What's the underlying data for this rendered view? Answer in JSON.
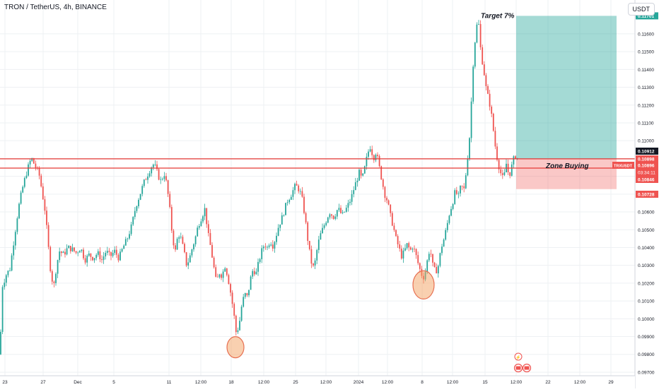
{
  "header": {
    "title": "TRON / TetherUS, 4h, BINANCE",
    "currency_button": "USDT"
  },
  "chart_data": {
    "type": "candlestick",
    "symbol": "TRXUSDT",
    "ylim": [
      0.0968,
      0.1179
    ],
    "y_ticks": [
      "0.09700",
      "0.09800",
      "0.09900",
      "0.10000",
      "0.10100",
      "0.10200",
      "0.10300",
      "0.10400",
      "0.10500",
      "0.10600",
      "0.10700",
      "0.10800",
      "0.10900",
      "0.11000",
      "0.11100",
      "0.11200",
      "0.11300",
      "0.11400",
      "0.11500",
      "0.11600"
    ],
    "x_ticks": [
      "23",
      "27",
      "Dec",
      "5",
      "11",
      "12:00",
      "18",
      "12:00",
      "25",
      "12:00",
      "2024",
      "12:00",
      "8",
      "12:00",
      "15",
      "12:00",
      "22",
      "12:00",
      "29"
    ],
    "price_tags": [
      {
        "value": "0.11701",
        "color": "#26a69a"
      },
      {
        "value": "0.10912",
        "color": "#131722"
      },
      {
        "value": "0.10898",
        "color": "#ef5350"
      },
      {
        "value": "0.10896",
        "color": "#ef5350"
      },
      {
        "value": "0.10846",
        "color": "#ef5350"
      },
      {
        "value": "0.10728",
        "color": "#ef5350"
      }
    ],
    "current_price": {
      "label": "TRXUSDT",
      "value": "0.10896",
      "countdown": "03:34:11"
    },
    "support_lines": [
      0.10898,
      0.10846
    ],
    "position": {
      "entry": 0.10896,
      "target": 0.11701,
      "stop": 0.10728
    },
    "annotations": {
      "target": "Target 7%",
      "zone": "Zone Buying"
    },
    "highlight_lows": [
      0.0984,
      0.1019
    ],
    "price_path": [
      [
        0,
        0.098
      ],
      [
        3,
        0.1018
      ],
      [
        9,
        0.1025
      ],
      [
        14,
        0.1028
      ],
      [
        20,
        0.1045
      ],
      [
        26,
        0.1062
      ],
      [
        31,
        0.1072
      ],
      [
        36,
        0.108
      ],
      [
        42,
        0.1088
      ],
      [
        46,
        0.109
      ],
      [
        48,
        0.1087
      ],
      [
        52,
        0.1084
      ],
      [
        56,
        0.108
      ],
      [
        60,
        0.107
      ],
      [
        64,
        0.106
      ],
      [
        68,
        0.1042
      ],
      [
        72,
        0.1025
      ],
      [
        76,
        0.1018
      ],
      [
        80,
        0.103
      ],
      [
        84,
        0.1038
      ],
      [
        90,
        0.1036
      ],
      [
        96,
        0.104
      ],
      [
        102,
        0.1039
      ],
      [
        108,
        0.1037
      ],
      [
        114,
        0.104
      ],
      [
        120,
        0.1033
      ],
      [
        126,
        0.1036
      ],
      [
        132,
        0.1034
      ],
      [
        138,
        0.1037
      ],
      [
        144,
        0.1033
      ],
      [
        150,
        0.1038
      ],
      [
        156,
        0.1035
      ],
      [
        162,
        0.1038
      ],
      [
        168,
        0.1034
      ],
      [
        174,
        0.104
      ],
      [
        180,
        0.1045
      ],
      [
        186,
        0.1052
      ],
      [
        192,
        0.1063
      ],
      [
        198,
        0.107
      ],
      [
        204,
        0.1077
      ],
      [
        210,
        0.1082
      ],
      [
        216,
        0.1087
      ],
      [
        220,
        0.1085
      ],
      [
        224,
        0.108
      ],
      [
        228,
        0.1077
      ],
      [
        232,
        0.1082
      ],
      [
        236,
        0.1075
      ],
      [
        240,
        0.1062
      ],
      [
        244,
        0.1045
      ],
      [
        248,
        0.1038
      ],
      [
        252,
        0.1048
      ],
      [
        256,
        0.1045
      ],
      [
        260,
        0.1038
      ],
      [
        264,
        0.103
      ],
      [
        268,
        0.1034
      ],
      [
        272,
        0.104
      ],
      [
        276,
        0.1045
      ],
      [
        280,
        0.1052
      ],
      [
        286,
        0.1058
      ],
      [
        290,
        0.1062
      ],
      [
        294,
        0.1048
      ],
      [
        298,
        0.104
      ],
      [
        302,
        0.103
      ],
      [
        306,
        0.102
      ],
      [
        310,
        0.1026
      ],
      [
        314,
        0.1024
      ],
      [
        318,
        0.103
      ],
      [
        322,
        0.1024
      ],
      [
        326,
        0.1015
      ],
      [
        330,
        0.1005
      ],
      [
        334,
        0.0992
      ],
      [
        338,
        0.0996
      ],
      [
        342,
        0.1008
      ],
      [
        346,
        0.1014
      ],
      [
        350,
        0.1012
      ],
      [
        354,
        0.1022
      ],
      [
        358,
        0.1028
      ],
      [
        362,
        0.1025
      ],
      [
        366,
        0.1032
      ],
      [
        370,
        0.1038
      ],
      [
        374,
        0.1042
      ],
      [
        378,
        0.104
      ],
      [
        382,
        0.1044
      ],
      [
        386,
        0.1041
      ],
      [
        390,
        0.1046
      ],
      [
        394,
        0.1052
      ],
      [
        400,
        0.1058
      ],
      [
        406,
        0.1066
      ],
      [
        412,
        0.107
      ],
      [
        418,
        0.1075
      ],
      [
        424,
        0.1072
      ],
      [
        428,
        0.1066
      ],
      [
        432,
        0.1055
      ],
      [
        436,
        0.1042
      ],
      [
        440,
        0.1032
      ],
      [
        444,
        0.1028
      ],
      [
        448,
        0.1038
      ],
      [
        452,
        0.1046
      ],
      [
        456,
        0.105
      ],
      [
        460,
        0.1054
      ],
      [
        466,
        0.106
      ],
      [
        472,
        0.1057
      ],
      [
        478,
        0.1062
      ],
      [
        484,
        0.1058
      ],
      [
        490,
        0.1062
      ],
      [
        496,
        0.1067
      ],
      [
        502,
        0.1075
      ],
      [
        508,
        0.1082
      ],
      [
        512,
        0.1078
      ],
      [
        516,
        0.1085
      ],
      [
        520,
        0.1093
      ],
      [
        524,
        0.1097
      ],
      [
        528,
        0.109
      ],
      [
        532,
        0.1094
      ],
      [
        536,
        0.1086
      ],
      [
        540,
        0.1078
      ],
      [
        544,
        0.107
      ],
      [
        548,
        0.1066
      ],
      [
        552,
        0.1058
      ],
      [
        556,
        0.1052
      ],
      [
        560,
        0.1045
      ],
      [
        564,
        0.104
      ],
      [
        568,
        0.1035
      ],
      [
        572,
        0.1038
      ],
      [
        576,
        0.1042
      ],
      [
        580,
        0.1038
      ],
      [
        584,
        0.1041
      ],
      [
        588,
        0.1036
      ],
      [
        592,
        0.103
      ],
      [
        596,
        0.1025
      ],
      [
        600,
        0.1023
      ],
      [
        604,
        0.1032
      ],
      [
        608,
        0.104
      ],
      [
        612,
        0.103
      ],
      [
        616,
        0.1026
      ],
      [
        620,
        0.103
      ],
      [
        624,
        0.104
      ],
      [
        628,
        0.1045
      ],
      [
        632,
        0.1052
      ],
      [
        636,
        0.106
      ],
      [
        640,
        0.1065
      ],
      [
        644,
        0.1072
      ],
      [
        648,
        0.1068
      ],
      [
        652,
        0.1075
      ],
      [
        656,
        0.1072
      ],
      [
        660,
        0.1085
      ],
      [
        664,
        0.1102
      ],
      [
        667,
        0.1125
      ],
      [
        670,
        0.115
      ],
      [
        673,
        0.116
      ],
      [
        676,
        0.117
      ],
      [
        680,
        0.115
      ],
      [
        684,
        0.114
      ],
      [
        688,
        0.1128
      ],
      [
        692,
        0.1122
      ],
      [
        696,
        0.1112
      ],
      [
        700,
        0.1098
      ],
      [
        704,
        0.1088
      ],
      [
        708,
        0.1082
      ],
      [
        712,
        0.1078
      ],
      [
        716,
        0.1087
      ],
      [
        720,
        0.108
      ],
      [
        724,
        0.1086
      ],
      [
        728,
        0.1092
      ],
      [
        732,
        0.109
      ]
    ]
  }
}
